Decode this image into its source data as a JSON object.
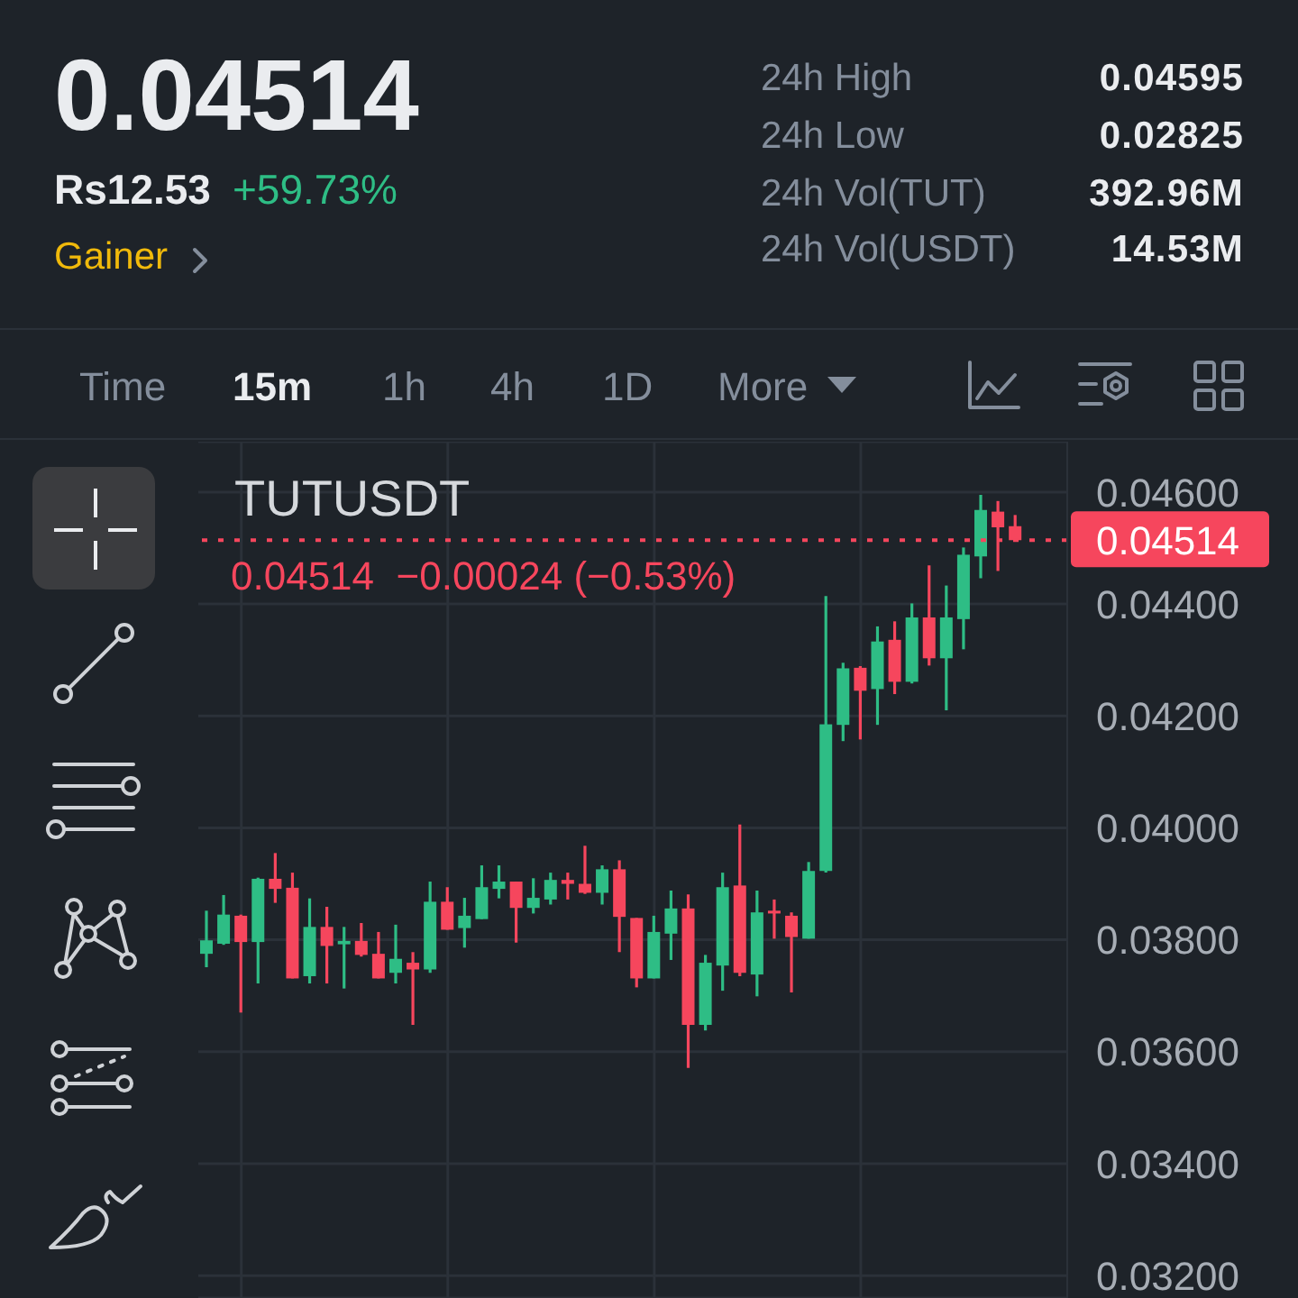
{
  "chart_data": {
    "type": "candlestick",
    "title": "TUTUSDT",
    "subtitle": "0.04514  −0.00024 (−0.53%)",
    "annotations": [
      "0.04514",
      "Rs12.53",
      "+59.73%",
      "Gainer",
      "24h High",
      "0.04595",
      "24h Low",
      "0.02825",
      "24h Vol(TUT)",
      "392.96M",
      "24h Vol(USDT)",
      "14.53M",
      "Time",
      "15m",
      "1h",
      "4h",
      "1D",
      "More"
    ],
    "categories": [
      null,
      null,
      null,
      null,
      null,
      null,
      null,
      null,
      null,
      null,
      null,
      null,
      null,
      null,
      null,
      null,
      null,
      null,
      null,
      null,
      null,
      null,
      null,
      null,
      null,
      null,
      null,
      null,
      null,
      null,
      null,
      null,
      null,
      null,
      null,
      null,
      null,
      null,
      null,
      null,
      null,
      null,
      null,
      null,
      null,
      null,
      null,
      null
    ],
    "ohlc": [
      [
        0.03775,
        0.03852,
        0.03751,
        0.03799
      ],
      [
        0.03793,
        0.0388,
        0.03791,
        0.03845
      ],
      [
        0.03843,
        0.03845,
        0.0367,
        0.03796
      ],
      [
        0.03796,
        0.03911,
        0.03722,
        0.03909
      ],
      [
        0.03909,
        0.03955,
        0.03866,
        0.03891
      ],
      [
        0.03893,
        0.0392,
        0.03731,
        0.03731
      ],
      [
        0.03735,
        0.03874,
        0.03722,
        0.03823
      ],
      [
        0.03823,
        0.03859,
        0.03722,
        0.03789
      ],
      [
        0.03792,
        0.03823,
        0.03713,
        0.03798
      ],
      [
        0.03798,
        0.0383,
        0.0377,
        0.03773
      ],
      [
        0.03775,
        0.03814,
        0.03731,
        0.03731
      ],
      [
        0.03741,
        0.03827,
        0.03722,
        0.03766
      ],
      [
        0.03759,
        0.03778,
        0.03648,
        0.03747
      ],
      [
        0.03747,
        0.03904,
        0.03741,
        0.03868
      ],
      [
        0.03868,
        0.03894,
        0.03818,
        0.03818
      ],
      [
        0.03821,
        0.03875,
        0.03786,
        0.03843
      ],
      [
        0.03837,
        0.03933,
        0.03837,
        0.03894
      ],
      [
        0.03891,
        0.03933,
        0.03874,
        0.03904
      ],
      [
        0.03904,
        0.03904,
        0.03795,
        0.03857
      ],
      [
        0.03857,
        0.0391,
        0.03847,
        0.03875
      ],
      [
        0.03872,
        0.0392,
        0.03863,
        0.03907
      ],
      [
        0.03907,
        0.0392,
        0.03872,
        0.039
      ],
      [
        0.039,
        0.03968,
        0.03882,
        0.03884
      ],
      [
        0.03884,
        0.03933,
        0.03863,
        0.03926
      ],
      [
        0.03926,
        0.03942,
        0.03778,
        0.03841
      ],
      [
        0.03839,
        0.03839,
        0.03715,
        0.03731
      ],
      [
        0.03731,
        0.03843,
        0.03731,
        0.03814
      ],
      [
        0.03811,
        0.03888,
        0.03764,
        0.03856
      ],
      [
        0.03856,
        0.03881,
        0.03571,
        0.03648
      ],
      [
        0.03648,
        0.03773,
        0.03638,
        0.03759
      ],
      [
        0.03754,
        0.0392,
        0.03709,
        0.03894
      ],
      [
        0.03897,
        0.04006,
        0.03735,
        0.03741
      ],
      [
        0.03738,
        0.03888,
        0.03699,
        0.03849
      ],
      [
        0.03852,
        0.03872,
        0.03802,
        0.03847
      ],
      [
        0.03843,
        0.03849,
        0.03706,
        0.03805
      ],
      [
        0.03802,
        0.03939,
        0.03802,
        0.03923
      ],
      [
        0.03923,
        0.04414,
        0.0392,
        0.04185
      ],
      [
        0.04184,
        0.04295,
        0.04155,
        0.04285
      ],
      [
        0.04286,
        0.04289,
        0.04158,
        0.04245
      ],
      [
        0.04248,
        0.0436,
        0.04184,
        0.04333
      ],
      [
        0.04336,
        0.04369,
        0.04239,
        0.04261
      ],
      [
        0.04261,
        0.04401,
        0.04258,
        0.04376
      ],
      [
        0.04376,
        0.04469,
        0.0429,
        0.04303
      ],
      [
        0.04303,
        0.04433,
        0.0421,
        0.04376
      ],
      [
        0.04373,
        0.04501,
        0.04319,
        0.04488
      ],
      [
        0.04485,
        0.04595,
        0.04446,
        0.04568
      ],
      [
        0.04565,
        0.04584,
        0.04459,
        0.04537
      ],
      [
        0.04539,
        0.04559,
        0.04514,
        0.04514
      ]
    ],
    "colors": [
      "#2ebd85",
      "#2ebd85",
      "#f6465d",
      "#2ebd85",
      "#f6465d",
      "#f6465d",
      "#2ebd85",
      "#f6465d",
      "#2ebd85",
      "#f6465d",
      "#f6465d",
      "#2ebd85",
      "#f6465d",
      "#2ebd85",
      "#f6465d",
      "#2ebd85",
      "#2ebd85",
      "#2ebd85",
      "#f6465d",
      "#2ebd85",
      "#2ebd85",
      "#f6465d",
      "#f6465d",
      "#2ebd85",
      "#f6465d",
      "#f6465d",
      "#2ebd85",
      "#2ebd85",
      "#f6465d",
      "#2ebd85",
      "#2ebd85",
      "#f6465d",
      "#2ebd85",
      "#f6465d",
      "#f6465d",
      "#2ebd85",
      "#2ebd85",
      "#2ebd85",
      "#f6465d",
      "#2ebd85",
      "#f6465d",
      "#2ebd85",
      "#f6465d",
      "#2ebd85",
      "#2ebd85",
      "#2ebd85",
      "#f6465d",
      "#f6465d"
    ],
    "ylim": [
      0.0316,
      0.0469
    ],
    "yticks": [
      {
        "value": 0.046,
        "label": "0.04600"
      },
      {
        "value": 0.044,
        "label": "0.04400"
      },
      {
        "value": 0.042,
        "label": "0.04200"
      },
      {
        "value": 0.04,
        "label": "0.04000"
      },
      {
        "value": 0.038,
        "label": "0.03800"
      },
      {
        "value": 0.036,
        "label": "0.03600"
      },
      {
        "value": 0.034,
        "label": "0.03400"
      },
      {
        "value": 0.032,
        "label": "0.03200"
      }
    ],
    "grid": true,
    "tick_labels": "y",
    "ref_lines": [
      {
        "axis": "y",
        "value": 0.04514,
        "label": "0.04514",
        "color": "#f6465d",
        "line_style": "dotted"
      }
    ]
  }
}
